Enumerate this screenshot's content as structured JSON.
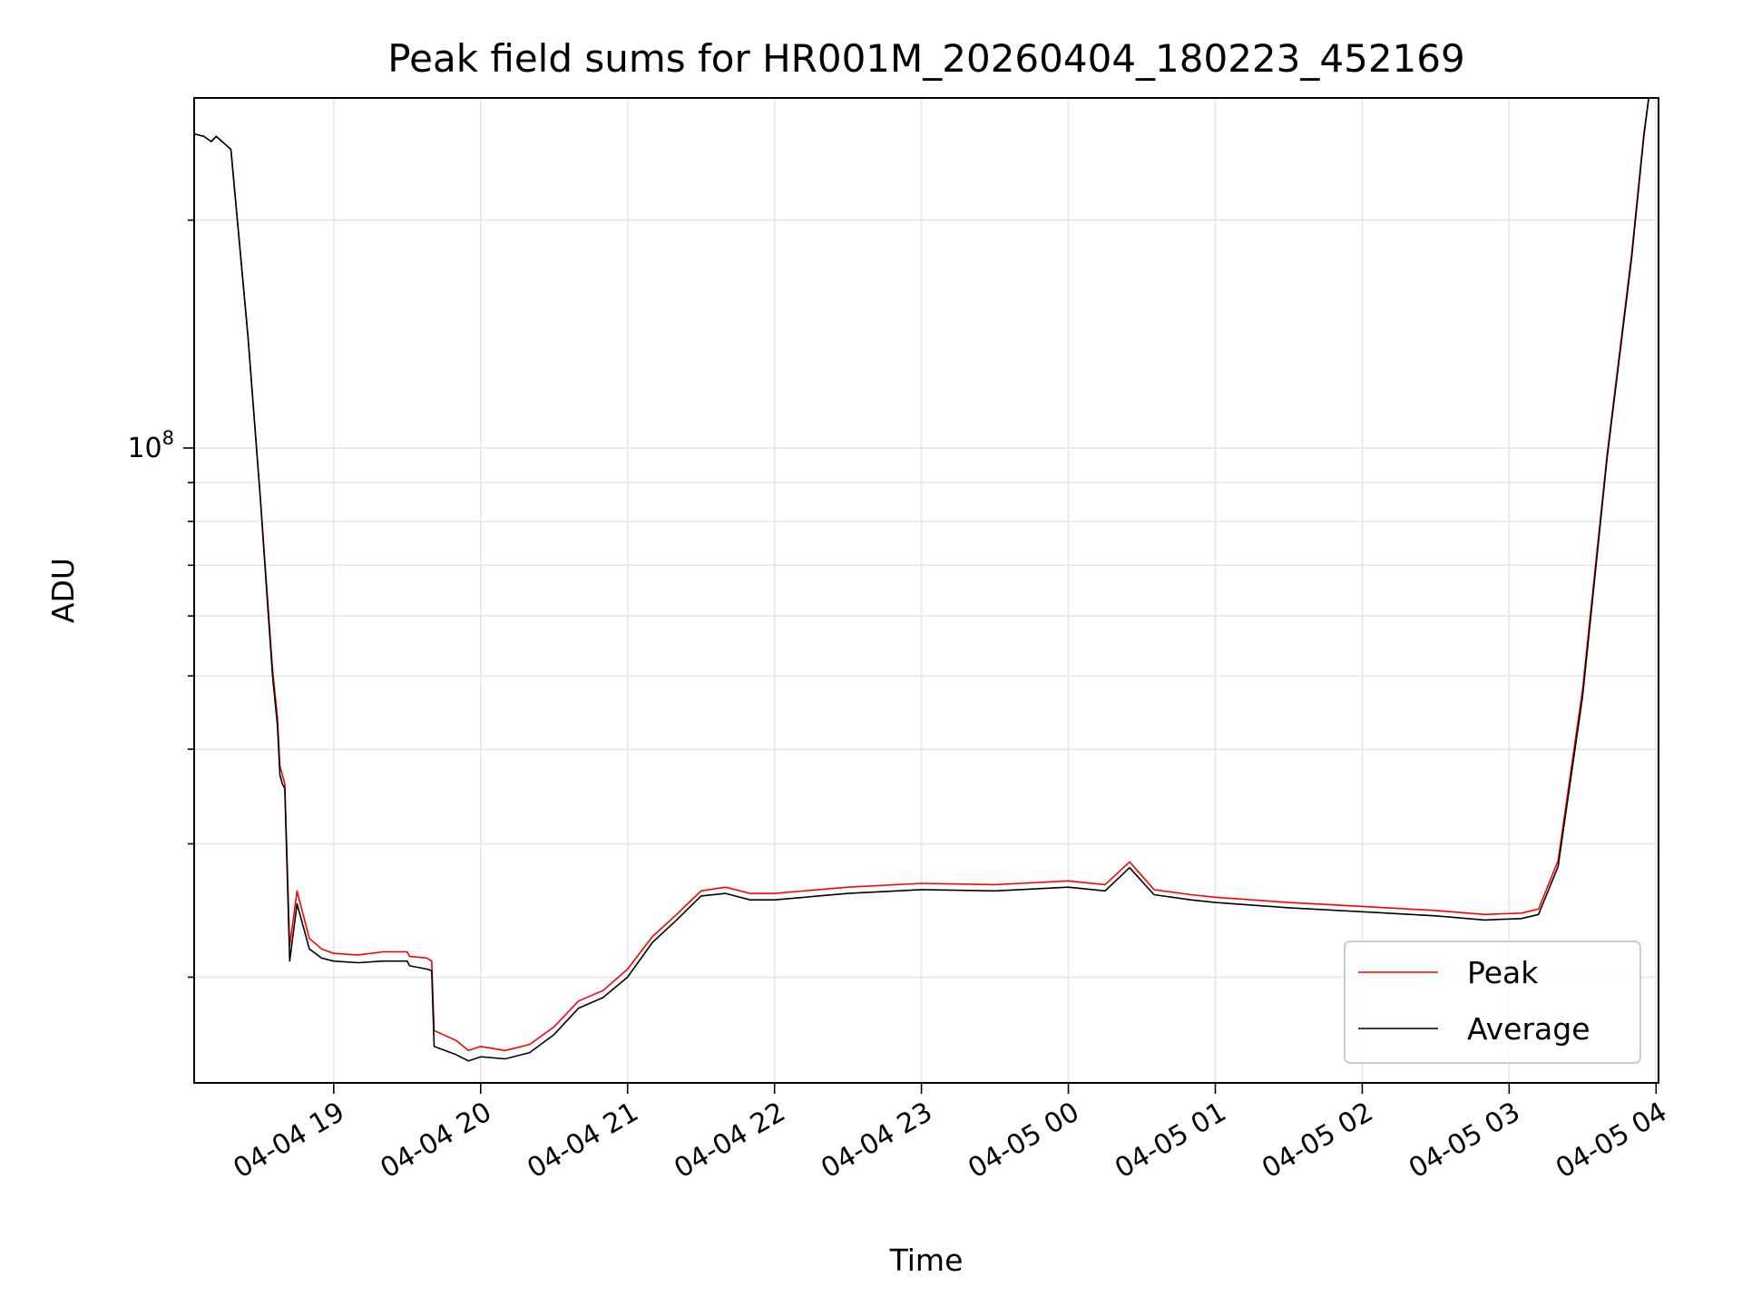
{
  "chart_data": {
    "type": "line",
    "title": "Peak field sums for HR001M_20260404_180223_452169",
    "xlabel": "Time",
    "ylabel": "ADU",
    "y_scale": "log",
    "ylim": [
      14500000,
      290000000
    ],
    "xlim": [
      "2026-04-04 18:03",
      "2026-04-05 04:01"
    ],
    "x_ticks": [
      {
        "label": "04-04 19",
        "time": "2026-04-04 19:00"
      },
      {
        "label": "04-04 20",
        "time": "2026-04-04 20:00"
      },
      {
        "label": "04-04 21",
        "time": "2026-04-04 21:00"
      },
      {
        "label": "04-04 22",
        "time": "2026-04-04 22:00"
      },
      {
        "label": "04-04 23",
        "time": "2026-04-04 23:00"
      },
      {
        "label": "04-05 00",
        "time": "2026-04-05 00:00"
      },
      {
        "label": "04-05 01",
        "time": "2026-04-05 01:00"
      },
      {
        "label": "04-05 02",
        "time": "2026-04-05 02:00"
      },
      {
        "label": "04-05 03",
        "time": "2026-04-05 03:00"
      },
      {
        "label": "04-05 04",
        "time": "2026-04-05 04:00"
      }
    ],
    "y_ticks": [
      {
        "base": "10",
        "exp": "8",
        "value": 100000000
      }
    ],
    "grid": true,
    "legend_position": "lower-right",
    "series": [
      {
        "name": "Peak",
        "color": "#ff0000",
        "x": [
          "2026-04-04 18:03",
          "2026-04-04 18:07",
          "2026-04-04 18:10",
          "2026-04-04 18:12",
          "2026-04-04 18:18",
          "2026-04-04 18:25",
          "2026-04-04 18:30",
          "2026-04-04 18:33",
          "2026-04-04 18:35",
          "2026-04-04 18:37",
          "2026-04-04 18:38",
          "2026-04-04 18:39",
          "2026-04-04 18:40",
          "2026-04-04 18:42",
          "2026-04-04 18:45",
          "2026-04-04 18:50",
          "2026-04-04 18:55",
          "2026-04-04 19:00",
          "2026-04-04 19:10",
          "2026-04-04 19:20",
          "2026-04-04 19:30",
          "2026-04-04 19:31",
          "2026-04-04 19:38",
          "2026-04-04 19:40",
          "2026-04-04 19:41",
          "2026-04-04 19:50",
          "2026-04-04 19:55",
          "2026-04-04 20:00",
          "2026-04-04 20:10",
          "2026-04-04 20:20",
          "2026-04-04 20:30",
          "2026-04-04 20:40",
          "2026-04-04 20:50",
          "2026-04-04 21:00",
          "2026-04-04 21:10",
          "2026-04-04 21:20",
          "2026-04-04 21:30",
          "2026-04-04 21:40",
          "2026-04-04 21:50",
          "2026-04-04 22:00",
          "2026-04-04 22:30",
          "2026-04-04 23:00",
          "2026-04-04 23:30",
          "2026-04-05 00:00",
          "2026-04-05 00:15",
          "2026-04-05 00:25",
          "2026-04-05 00:35",
          "2026-04-05 00:50",
          "2026-04-05 01:00",
          "2026-04-05 01:30",
          "2026-04-05 02:00",
          "2026-04-05 02:30",
          "2026-04-05 02:50",
          "2026-04-05 03:05",
          "2026-04-05 03:12",
          "2026-04-05 03:20",
          "2026-04-05 03:30",
          "2026-04-05 03:40",
          "2026-04-05 03:50",
          "2026-04-05 03:55",
          "2026-04-05 03:57"
        ],
        "values": [
          260000000,
          258000000,
          254000000,
          258000000,
          248000000,
          140000000,
          86000000,
          63000000,
          51000000,
          44000000,
          38000000,
          37000000,
          36000000,
          22000000,
          26000000,
          22500000,
          21800000,
          21500000,
          21400000,
          21600000,
          21600000,
          21300000,
          21200000,
          21000000,
          17000000,
          16500000,
          16000000,
          16200000,
          16000000,
          16300000,
          17200000,
          18600000,
          19200000,
          20500000,
          22600000,
          24200000,
          26000000,
          26300000,
          25800000,
          25800000,
          26300000,
          26600000,
          26500000,
          26800000,
          26500000,
          28400000,
          26100000,
          25700000,
          25500000,
          25100000,
          24800000,
          24500000,
          24200000,
          24300000,
          24600000,
          28500000,
          48000000,
          98000000,
          180000000,
          260000000,
          290000000
        ]
      },
      {
        "name": "Average",
        "color": "#000000",
        "x": [
          "2026-04-04 18:03",
          "2026-04-04 18:07",
          "2026-04-04 18:10",
          "2026-04-04 18:12",
          "2026-04-04 18:18",
          "2026-04-04 18:25",
          "2026-04-04 18:30",
          "2026-04-04 18:33",
          "2026-04-04 18:35",
          "2026-04-04 18:37",
          "2026-04-04 18:38",
          "2026-04-04 18:39",
          "2026-04-04 18:40",
          "2026-04-04 18:42",
          "2026-04-04 18:45",
          "2026-04-04 18:50",
          "2026-04-04 18:55",
          "2026-04-04 19:00",
          "2026-04-04 19:10",
          "2026-04-04 19:20",
          "2026-04-04 19:30",
          "2026-04-04 19:31",
          "2026-04-04 19:38",
          "2026-04-04 19:40",
          "2026-04-04 19:41",
          "2026-04-04 19:50",
          "2026-04-04 19:55",
          "2026-04-04 20:00",
          "2026-04-04 20:10",
          "2026-04-04 20:20",
          "2026-04-04 20:30",
          "2026-04-04 20:40",
          "2026-04-04 20:50",
          "2026-04-04 21:00",
          "2026-04-04 21:10",
          "2026-04-04 21:20",
          "2026-04-04 21:30",
          "2026-04-04 21:40",
          "2026-04-04 21:50",
          "2026-04-04 22:00",
          "2026-04-04 22:30",
          "2026-04-04 23:00",
          "2026-04-04 23:30",
          "2026-04-05 00:00",
          "2026-04-05 00:15",
          "2026-04-05 00:25",
          "2026-04-05 00:35",
          "2026-04-05 00:50",
          "2026-04-05 01:00",
          "2026-04-05 01:30",
          "2026-04-05 02:00",
          "2026-04-05 02:30",
          "2026-04-05 02:50",
          "2026-04-05 03:05",
          "2026-04-05 03:12",
          "2026-04-05 03:20",
          "2026-04-05 03:30",
          "2026-04-05 03:40",
          "2026-04-05 03:50",
          "2026-04-05 03:55",
          "2026-04-05 03:57"
        ],
        "values": [
          260000000,
          258000000,
          254000000,
          258000000,
          248000000,
          140000000,
          86000000,
          62000000,
          50000000,
          43000000,
          37000000,
          36000000,
          35500000,
          21000000,
          25000000,
          21800000,
          21200000,
          21000000,
          20900000,
          21000000,
          21000000,
          20700000,
          20500000,
          20400000,
          16200000,
          15800000,
          15500000,
          15700000,
          15600000,
          15900000,
          16800000,
          18200000,
          18800000,
          20000000,
          22200000,
          23800000,
          25600000,
          25800000,
          25300000,
          25300000,
          25800000,
          26100000,
          26000000,
          26300000,
          26000000,
          27900000,
          25700000,
          25300000,
          25100000,
          24700000,
          24400000,
          24100000,
          23800000,
          23900000,
          24200000,
          28000000,
          47000000,
          97000000,
          178000000,
          258000000,
          290000000
        ]
      }
    ]
  }
}
